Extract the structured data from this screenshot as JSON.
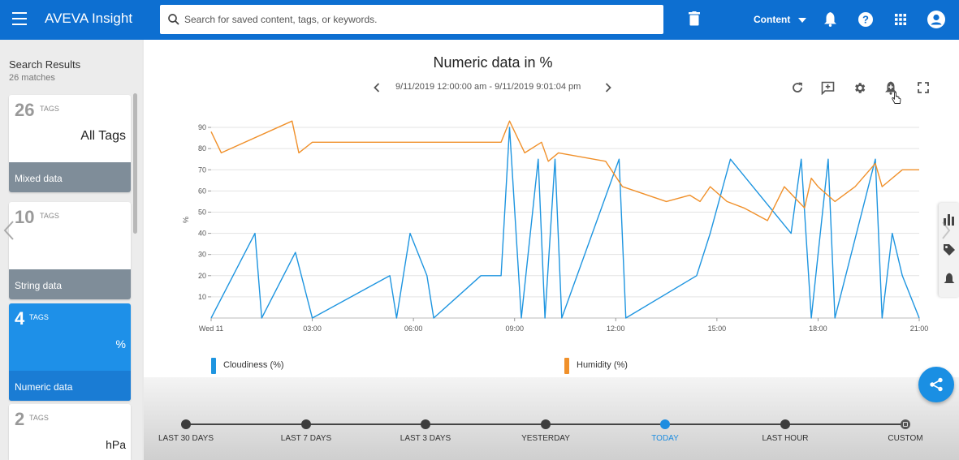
{
  "app": {
    "title": "AVEVA Insight"
  },
  "search": {
    "placeholder": "Search for saved content, tags, or keywords."
  },
  "header": {
    "content_menu": "Content"
  },
  "results": {
    "title": "Search Results",
    "count": "26 matches",
    "cards": [
      {
        "count": "26",
        "tags_label": "TAGS",
        "name": "All Tags",
        "footer": "Mixed data"
      },
      {
        "count": "10",
        "tags_label": "TAGS",
        "name": "",
        "footer": "String data"
      },
      {
        "count": "4",
        "tags_label": "TAGS",
        "name": "%",
        "footer": "Numeric data"
      },
      {
        "count": "2",
        "tags_label": "TAGS",
        "name": "hPa",
        "footer": ""
      }
    ]
  },
  "chart": {
    "title": "Numeric data in %",
    "range": "9/11/2019 12:00:00 am - 9/11/2019 9:01:04 pm"
  },
  "timeline": {
    "items": [
      "LAST 30 DAYS",
      "LAST 7 DAYS",
      "LAST 3 DAYS",
      "YESTERDAY",
      "TODAY",
      "LAST HOUR",
      "CUSTOM"
    ],
    "active": "TODAY"
  },
  "colors": {
    "brand": "#0d6fd1",
    "cloudiness": "#1e95e0",
    "humidity": "#f0902a",
    "active": "#1e8de0"
  },
  "chart_data": {
    "type": "line",
    "title": "Numeric data in %",
    "xlabel": "",
    "ylabel": "%",
    "x_ticks": [
      "Wed 11",
      "03:00",
      "06:00",
      "09:00",
      "12:00",
      "15:00",
      "18:00",
      "21:00"
    ],
    "y_ticks": [
      10,
      20,
      30,
      40,
      50,
      60,
      70,
      80,
      90
    ],
    "xlim_hours": [
      0,
      21
    ],
    "ylim": [
      0,
      95
    ],
    "grid": true,
    "legend_position": "bottom",
    "series": [
      {
        "name": "Cloudiness (%)",
        "color": "#1e95e0",
        "points": [
          [
            0.0,
            0
          ],
          [
            1.3,
            40
          ],
          [
            1.5,
            0
          ],
          [
            2.5,
            31
          ],
          [
            3.0,
            0
          ],
          [
            5.3,
            20
          ],
          [
            5.5,
            0
          ],
          [
            5.9,
            40
          ],
          [
            6.4,
            20
          ],
          [
            6.6,
            0
          ],
          [
            8.0,
            20
          ],
          [
            8.6,
            20
          ],
          [
            8.85,
            90
          ],
          [
            9.2,
            0
          ],
          [
            9.7,
            75
          ],
          [
            9.9,
            0
          ],
          [
            10.2,
            75
          ],
          [
            10.4,
            0
          ],
          [
            12.1,
            75
          ],
          [
            12.3,
            0
          ],
          [
            14.4,
            20
          ],
          [
            14.8,
            40
          ],
          [
            15.4,
            75
          ],
          [
            17.2,
            40
          ],
          [
            17.5,
            75
          ],
          [
            17.8,
            0
          ],
          [
            18.3,
            75
          ],
          [
            18.5,
            0
          ],
          [
            19.7,
            75
          ],
          [
            19.9,
            0
          ],
          [
            20.2,
            40
          ],
          [
            20.5,
            20
          ],
          [
            21.0,
            0
          ]
        ]
      },
      {
        "name": "Humidity (%)",
        "color": "#f0902a",
        "points": [
          [
            0.0,
            88
          ],
          [
            0.3,
            78
          ],
          [
            2.4,
            93
          ],
          [
            2.6,
            78
          ],
          [
            3.0,
            83
          ],
          [
            8.6,
            83
          ],
          [
            8.85,
            93
          ],
          [
            9.3,
            78
          ],
          [
            9.8,
            83
          ],
          [
            10.0,
            74
          ],
          [
            10.3,
            78
          ],
          [
            11.7,
            74
          ],
          [
            12.2,
            62
          ],
          [
            13.5,
            55
          ],
          [
            14.2,
            58
          ],
          [
            14.5,
            55
          ],
          [
            14.8,
            62
          ],
          [
            15.3,
            55
          ],
          [
            15.8,
            52
          ],
          [
            16.5,
            46
          ],
          [
            17.0,
            62
          ],
          [
            17.6,
            52
          ],
          [
            17.8,
            66
          ],
          [
            18.0,
            62
          ],
          [
            18.5,
            55
          ],
          [
            19.1,
            62
          ],
          [
            19.7,
            73
          ],
          [
            19.9,
            62
          ],
          [
            20.5,
            70
          ],
          [
            21.0,
            70
          ]
        ]
      }
    ]
  }
}
